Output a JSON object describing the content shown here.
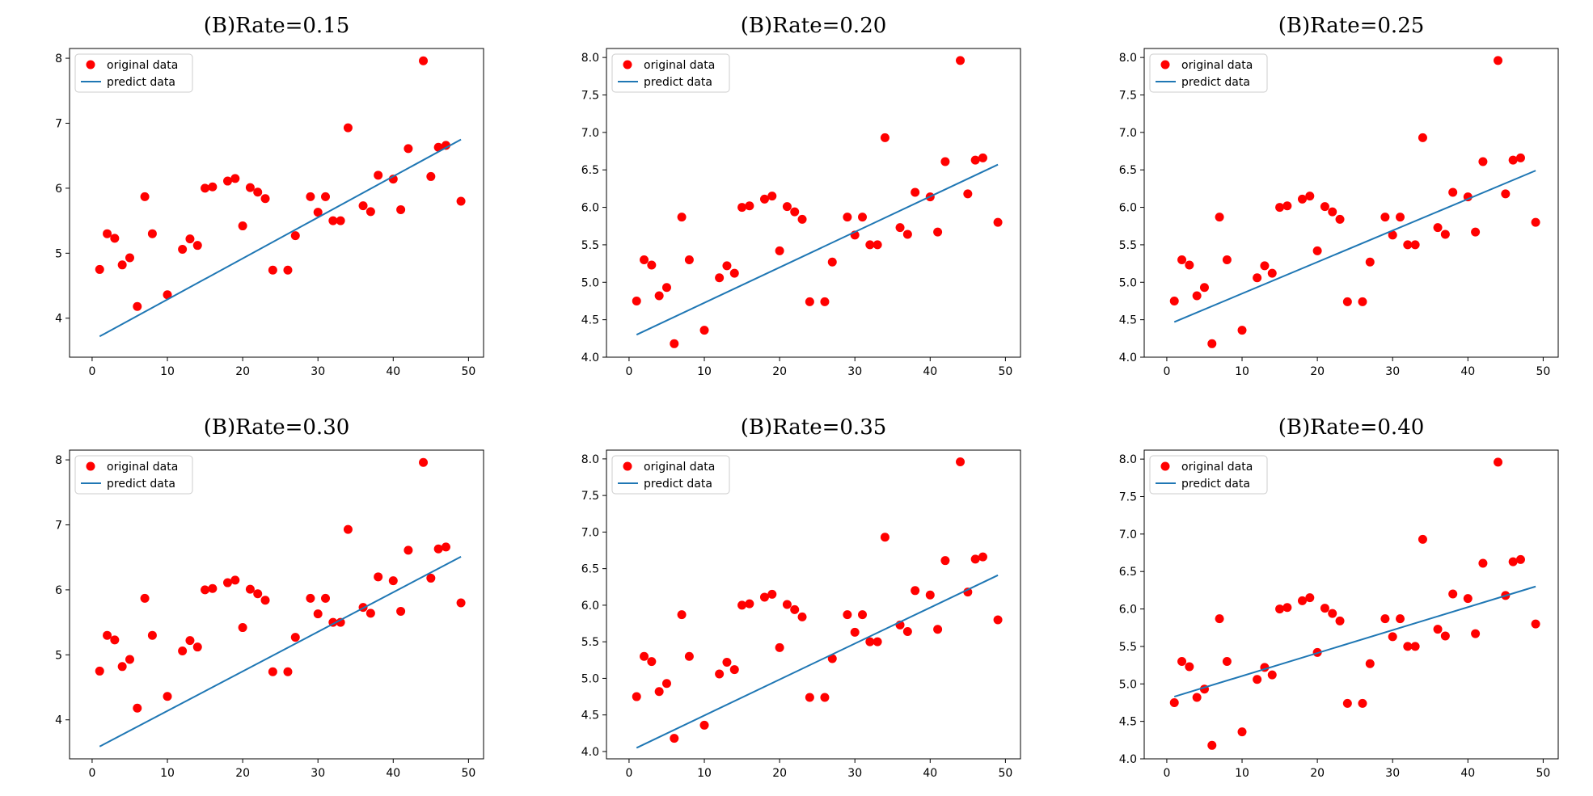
{
  "figure": {
    "colors": {
      "original": "#ff0000",
      "predict": "#1f77b4",
      "axes": "#000000",
      "legend_border": "#cccccc"
    }
  },
  "chart_data": [
    {
      "type": "scatter",
      "title": "(B)Rate=0.15",
      "xlim": [
        -3,
        52
      ],
      "ylim": [
        3.4,
        8.15
      ],
      "xticks": [
        0,
        10,
        20,
        30,
        40,
        50
      ],
      "xtick_labels": [
        "0",
        "10",
        "20",
        "30",
        "40",
        "50"
      ],
      "yticks": [
        4,
        5,
        6,
        7,
        8
      ],
      "ytick_labels": [
        "4",
        "5",
        "6",
        "7",
        "8"
      ],
      "legend": {
        "placement": "top-left",
        "entries": [
          "original data",
          "predict data"
        ]
      },
      "series": [
        {
          "name": "original data",
          "kind": "scatter",
          "color": "#ff0000",
          "x": [
            1,
            2,
            3,
            4,
            5,
            6,
            7,
            8,
            10,
            12,
            13,
            14,
            15,
            16,
            18,
            19,
            20,
            21,
            22,
            23,
            24,
            26,
            27,
            29,
            30,
            31,
            32,
            33,
            34,
            36,
            37,
            38,
            40,
            41,
            42,
            44,
            45,
            46,
            47,
            49
          ],
          "y": [
            4.75,
            5.3,
            5.23,
            4.82,
            4.93,
            4.18,
            5.87,
            5.3,
            4.36,
            5.06,
            5.22,
            5.12,
            6.0,
            6.02,
            6.11,
            6.15,
            5.42,
            6.01,
            5.94,
            5.84,
            4.74,
            4.74,
            5.27,
            5.87,
            5.63,
            5.87,
            5.5,
            5.5,
            6.93,
            5.73,
            5.64,
            6.2,
            6.14,
            5.67,
            6.61,
            7.96,
            6.18,
            6.63,
            6.66,
            5.8
          ]
        },
        {
          "name": "predict data",
          "kind": "line",
          "color": "#1f77b4",
          "x": [
            1,
            49
          ],
          "y": [
            3.72,
            6.75
          ]
        }
      ]
    },
    {
      "type": "scatter",
      "title": "(B)Rate=0.20",
      "xlim": [
        -3,
        52
      ],
      "ylim": [
        4.0,
        8.12
      ],
      "xticks": [
        0,
        10,
        20,
        30,
        40,
        50
      ],
      "xtick_labels": [
        "0",
        "10",
        "20",
        "30",
        "40",
        "50"
      ],
      "yticks": [
        4.0,
        4.5,
        5.0,
        5.5,
        6.0,
        6.5,
        7.0,
        7.5,
        8.0
      ],
      "ytick_labels": [
        "4.0",
        "4.5",
        "5.0",
        "5.5",
        "6.0",
        "6.5",
        "7.0",
        "7.5",
        "8.0"
      ],
      "legend": {
        "placement": "top-left",
        "entries": [
          "original data",
          "predict data"
        ]
      },
      "series": [
        {
          "name": "original data",
          "kind": "scatter",
          "color": "#ff0000",
          "x": [
            1,
            2,
            3,
            4,
            5,
            6,
            7,
            8,
            10,
            12,
            13,
            14,
            15,
            16,
            18,
            19,
            20,
            21,
            22,
            23,
            24,
            26,
            27,
            29,
            30,
            31,
            32,
            33,
            34,
            36,
            37,
            38,
            40,
            41,
            42,
            44,
            45,
            46,
            47,
            49
          ],
          "y": [
            4.75,
            5.3,
            5.23,
            4.82,
            4.93,
            4.18,
            5.87,
            5.3,
            4.36,
            5.06,
            5.22,
            5.12,
            6.0,
            6.02,
            6.11,
            6.15,
            5.42,
            6.01,
            5.94,
            5.84,
            4.74,
            4.74,
            5.27,
            5.87,
            5.63,
            5.87,
            5.5,
            5.5,
            6.93,
            5.73,
            5.64,
            6.2,
            6.14,
            5.67,
            6.61,
            7.96,
            6.18,
            6.63,
            6.66,
            5.8
          ]
        },
        {
          "name": "predict data",
          "kind": "line",
          "color": "#1f77b4",
          "x": [
            1,
            49
          ],
          "y": [
            4.3,
            6.57
          ]
        }
      ]
    },
    {
      "type": "scatter",
      "title": "(B)Rate=0.25",
      "xlim": [
        -3,
        52
      ],
      "ylim": [
        4.0,
        8.12
      ],
      "xticks": [
        0,
        10,
        20,
        30,
        40,
        50
      ],
      "xtick_labels": [
        "0",
        "10",
        "20",
        "30",
        "40",
        "50"
      ],
      "yticks": [
        4.0,
        4.5,
        5.0,
        5.5,
        6.0,
        6.5,
        7.0,
        7.5,
        8.0
      ],
      "ytick_labels": [
        "4.0",
        "4.5",
        "5.0",
        "5.5",
        "6.0",
        "6.5",
        "7.0",
        "7.5",
        "8.0"
      ],
      "legend": {
        "placement": "top-left",
        "entries": [
          "original data",
          "predict data"
        ]
      },
      "series": [
        {
          "name": "original data",
          "kind": "scatter",
          "color": "#ff0000",
          "x": [
            1,
            2,
            3,
            4,
            5,
            6,
            7,
            8,
            10,
            12,
            13,
            14,
            15,
            16,
            18,
            19,
            20,
            21,
            22,
            23,
            24,
            26,
            27,
            29,
            30,
            31,
            32,
            33,
            34,
            36,
            37,
            38,
            40,
            41,
            42,
            44,
            45,
            46,
            47,
            49
          ],
          "y": [
            4.75,
            5.3,
            5.23,
            4.82,
            4.93,
            4.18,
            5.87,
            5.3,
            4.36,
            5.06,
            5.22,
            5.12,
            6.0,
            6.02,
            6.11,
            6.15,
            5.42,
            6.01,
            5.94,
            5.84,
            4.74,
            4.74,
            5.27,
            5.87,
            5.63,
            5.87,
            5.5,
            5.5,
            6.93,
            5.73,
            5.64,
            6.2,
            6.14,
            5.67,
            6.61,
            7.96,
            6.18,
            6.63,
            6.66,
            5.8
          ]
        },
        {
          "name": "predict data",
          "kind": "line",
          "color": "#1f77b4",
          "x": [
            1,
            49
          ],
          "y": [
            4.47,
            6.49
          ]
        }
      ]
    },
    {
      "type": "scatter",
      "title": "(B)Rate=0.30",
      "xlim": [
        -3,
        52
      ],
      "ylim": [
        3.4,
        8.15
      ],
      "xticks": [
        0,
        10,
        20,
        30,
        40,
        50
      ],
      "xtick_labels": [
        "0",
        "10",
        "20",
        "30",
        "40",
        "50"
      ],
      "yticks": [
        4,
        5,
        6,
        7,
        8
      ],
      "ytick_labels": [
        "4",
        "5",
        "6",
        "7",
        "8"
      ],
      "legend": {
        "placement": "top-left",
        "entries": [
          "original data",
          "predict data"
        ]
      },
      "series": [
        {
          "name": "original data",
          "kind": "scatter",
          "color": "#ff0000",
          "x": [
            1,
            2,
            3,
            4,
            5,
            6,
            7,
            8,
            10,
            12,
            13,
            14,
            15,
            16,
            18,
            19,
            20,
            21,
            22,
            23,
            24,
            26,
            27,
            29,
            30,
            31,
            32,
            33,
            34,
            36,
            37,
            38,
            40,
            41,
            42,
            44,
            45,
            46,
            47,
            49
          ],
          "y": [
            4.75,
            5.3,
            5.23,
            4.82,
            4.93,
            4.18,
            5.87,
            5.3,
            4.36,
            5.06,
            5.22,
            5.12,
            6.0,
            6.02,
            6.11,
            6.15,
            5.42,
            6.01,
            5.94,
            5.84,
            4.74,
            4.74,
            5.27,
            5.87,
            5.63,
            5.87,
            5.5,
            5.5,
            6.93,
            5.73,
            5.64,
            6.2,
            6.14,
            5.67,
            6.61,
            7.96,
            6.18,
            6.63,
            6.66,
            5.8
          ]
        },
        {
          "name": "predict data",
          "kind": "line",
          "color": "#1f77b4",
          "x": [
            1,
            49
          ],
          "y": [
            3.59,
            6.51
          ]
        }
      ]
    },
    {
      "type": "scatter",
      "title": "(B)Rate=0.35",
      "xlim": [
        -3,
        52
      ],
      "ylim": [
        3.9,
        8.12
      ],
      "xticks": [
        0,
        10,
        20,
        30,
        40,
        50
      ],
      "xtick_labels": [
        "0",
        "10",
        "20",
        "30",
        "40",
        "50"
      ],
      "yticks": [
        4.0,
        4.5,
        5.0,
        5.5,
        6.0,
        6.5,
        7.0,
        7.5,
        8.0
      ],
      "ytick_labels": [
        "4.0",
        "4.5",
        "5.0",
        "5.5",
        "6.0",
        "6.5",
        "7.0",
        "7.5",
        "8.0"
      ],
      "legend": {
        "placement": "top-left",
        "entries": [
          "original data",
          "predict data"
        ]
      },
      "series": [
        {
          "name": "original data",
          "kind": "scatter",
          "color": "#ff0000",
          "x": [
            1,
            2,
            3,
            4,
            5,
            6,
            7,
            8,
            10,
            12,
            13,
            14,
            15,
            16,
            18,
            19,
            20,
            21,
            22,
            23,
            24,
            26,
            27,
            29,
            30,
            31,
            32,
            33,
            34,
            36,
            37,
            38,
            40,
            41,
            42,
            44,
            45,
            46,
            47,
            49
          ],
          "y": [
            4.75,
            5.3,
            5.23,
            4.82,
            4.93,
            4.18,
            5.87,
            5.3,
            4.36,
            5.06,
            5.22,
            5.12,
            6.0,
            6.02,
            6.11,
            6.15,
            5.42,
            6.01,
            5.94,
            5.84,
            4.74,
            4.74,
            5.27,
            5.87,
            5.63,
            5.87,
            5.5,
            5.5,
            6.93,
            5.73,
            5.64,
            6.2,
            6.14,
            5.67,
            6.61,
            7.96,
            6.18,
            6.63,
            6.66,
            5.8
          ]
        },
        {
          "name": "predict data",
          "kind": "line",
          "color": "#1f77b4",
          "x": [
            1,
            49
          ],
          "y": [
            4.05,
            6.41
          ]
        }
      ]
    },
    {
      "type": "scatter",
      "title": "(B)Rate=0.40",
      "xlim": [
        -3,
        52
      ],
      "ylim": [
        4.0,
        8.12
      ],
      "xticks": [
        0,
        10,
        20,
        30,
        40,
        50
      ],
      "xtick_labels": [
        "0",
        "10",
        "20",
        "30",
        "40",
        "50"
      ],
      "yticks": [
        4.0,
        4.5,
        5.0,
        5.5,
        6.0,
        6.5,
        7.0,
        7.5,
        8.0
      ],
      "ytick_labels": [
        "4.0",
        "4.5",
        "5.0",
        "5.5",
        "6.0",
        "6.5",
        "7.0",
        "7.5",
        "8.0"
      ],
      "legend": {
        "placement": "top-left",
        "entries": [
          "original data",
          "predict data"
        ]
      },
      "series": [
        {
          "name": "original data",
          "kind": "scatter",
          "color": "#ff0000",
          "x": [
            1,
            2,
            3,
            4,
            5,
            6,
            7,
            8,
            10,
            12,
            13,
            14,
            15,
            16,
            18,
            19,
            20,
            21,
            22,
            23,
            24,
            26,
            27,
            29,
            30,
            31,
            32,
            33,
            34,
            36,
            37,
            38,
            40,
            41,
            42,
            44,
            45,
            46,
            47,
            49
          ],
          "y": [
            4.75,
            5.3,
            5.23,
            4.82,
            4.93,
            4.18,
            5.87,
            5.3,
            4.36,
            5.06,
            5.22,
            5.12,
            6.0,
            6.02,
            6.11,
            6.15,
            5.42,
            6.01,
            5.94,
            5.84,
            4.74,
            4.74,
            5.27,
            5.87,
            5.63,
            5.87,
            5.5,
            5.5,
            6.93,
            5.73,
            5.64,
            6.2,
            6.14,
            5.67,
            6.61,
            7.96,
            6.18,
            6.63,
            6.66,
            5.8
          ]
        },
        {
          "name": "predict data",
          "kind": "line",
          "color": "#1f77b4",
          "x": [
            1,
            49
          ],
          "y": [
            4.83,
            6.3
          ]
        }
      ]
    }
  ]
}
